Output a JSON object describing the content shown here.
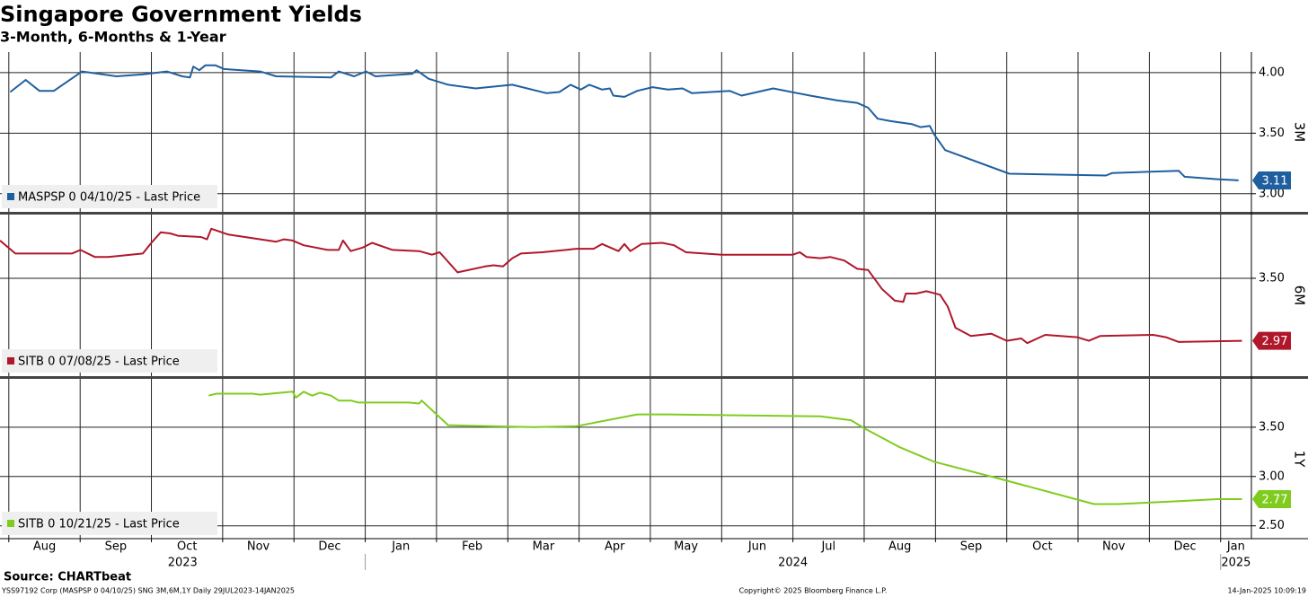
{
  "title": "Singapore Government Yields",
  "subtitle": "3-Month, 6-Months & 1-Year",
  "source": "Source: CHARTbeat",
  "footer": {
    "left": "YSS97192 Corp (MASPSP 0 04/10/25) SNG 3M,6M,1Y  Daily 29JUL2023-14JAN2025",
    "center": "Copyright© 2025 Bloomberg Finance L.P.",
    "right": "14-Jan-2025 10:09:19"
  },
  "chart_data": [
    {
      "type": "line",
      "axis_label": "3M",
      "ylim": [
        2.85,
        4.17
      ],
      "yticks": [
        {
          "value": 4,
          "label": "4.00"
        },
        {
          "value": 3.5,
          "label": "3.50"
        },
        {
          "value": 3,
          "label": "3.00"
        }
      ],
      "grid": true,
      "legend": "lower left",
      "series": [
        {
          "name": "MASPSP 0 04/10/25 - Last Price",
          "color": "#1f5f9f",
          "x": [
            2023.585,
            2023.603,
            2023.619,
            2023.636,
            2023.669,
            2023.709,
            2023.74,
            2023.768,
            2023.786,
            2023.795,
            2023.799,
            2023.806,
            2023.813,
            2023.825,
            2023.835,
            2023.877,
            2023.896,
            2023.96,
            2023.969,
            2023.987,
            2024.001,
            2024.012,
            2024.055,
            2024.06,
            2024.074,
            2024.097,
            2024.129,
            2024.172,
            2024.212,
            2024.227,
            2024.24,
            2024.252,
            2024.262,
            2024.277,
            2024.286,
            2024.29,
            2024.303,
            2024.318,
            2024.336,
            2024.354,
            2024.371,
            2024.382,
            2024.426,
            2024.44,
            2024.477,
            2024.52,
            2024.552,
            2024.575,
            2024.588,
            2024.599,
            2024.614,
            2024.639,
            2024.649,
            2024.66,
            2024.665,
            2024.678,
            2024.753,
            2024.866,
            2024.873,
            2024.951,
            2024.958,
            2024.996,
            2025.021
          ],
          "values": [
            3.84,
            3.94,
            3.85,
            3.85,
            4.01,
            3.97,
            3.985,
            4.01,
            3.97,
            3.96,
            4.05,
            4.02,
            4.06,
            4.06,
            4.03,
            4.01,
            3.97,
            3.96,
            4.01,
            3.97,
            4.01,
            3.97,
            3.99,
            4.02,
            3.95,
            3.9,
            3.87,
            3.9,
            3.83,
            3.84,
            3.9,
            3.86,
            3.9,
            3.86,
            3.87,
            3.81,
            3.8,
            3.85,
            3.88,
            3.86,
            3.87,
            3.83,
            3.85,
            3.81,
            3.87,
            3.81,
            3.77,
            3.75,
            3.71,
            3.62,
            3.6,
            3.575,
            3.55,
            3.56,
            3.49,
            3.36,
            3.165,
            3.15,
            3.17,
            3.19,
            3.14,
            3.12,
            3.11
          ]
        }
      ]
    },
    {
      "type": "line",
      "axis_label": "6M",
      "ylim": [
        2.67,
        4.04
      ],
      "yticks": [
        {
          "value": 3.5,
          "label": "3.50"
        }
      ],
      "grid": true,
      "legend": "lower left",
      "series": [
        {
          "name": "SITB 0 07/08/25 - Last Price",
          "color": "#b0172b",
          "x": [
            2023.573,
            2023.591,
            2023.621,
            2023.657,
            2023.667,
            2023.684,
            2023.699,
            2023.74,
            2023.75,
            2023.761,
            2023.772,
            2023.781,
            2023.808,
            2023.815,
            2023.82,
            2023.84,
            2023.896,
            2023.905,
            2023.915,
            2023.928,
            2023.956,
            2023.969,
            2023.974,
            2023.983,
            2023.997,
            2024.008,
            2024.032,
            2024.063,
            2024.078,
            2024.087,
            2024.108,
            2024.14,
            2024.15,
            2024.161,
            2024.172,
            2024.182,
            2024.207,
            2024.247,
            2024.267,
            2024.277,
            2024.296,
            2024.303,
            2024.31,
            2024.323,
            2024.347,
            2024.361,
            2024.375,
            2024.417,
            2024.5,
            2024.508,
            2024.516,
            2024.532,
            2024.544,
            2024.56,
            2024.575,
            2024.588,
            2024.604,
            2024.619,
            2024.629,
            2024.632,
            2024.644,
            2024.656,
            2024.672,
            2024.681,
            2024.69,
            2024.708,
            2024.732,
            2024.75,
            2024.767,
            2024.774,
            2024.795,
            2024.832,
            2024.846,
            2024.859,
            2024.921,
            2024.936,
            2024.951,
            2025.025
          ],
          "values": [
            3.82,
            3.71,
            3.71,
            3.71,
            3.74,
            3.68,
            3.68,
            3.71,
            3.8,
            3.89,
            3.88,
            3.86,
            3.85,
            3.83,
            3.92,
            3.87,
            3.81,
            3.83,
            3.82,
            3.78,
            3.74,
            3.74,
            3.82,
            3.73,
            3.76,
            3.8,
            3.74,
            3.73,
            3.7,
            3.72,
            3.55,
            3.6,
            3.61,
            3.6,
            3.67,
            3.71,
            3.72,
            3.75,
            3.75,
            3.79,
            3.73,
            3.79,
            3.73,
            3.79,
            3.8,
            3.78,
            3.72,
            3.7,
            3.7,
            3.72,
            3.68,
            3.67,
            3.68,
            3.65,
            3.58,
            3.57,
            3.41,
            3.31,
            3.3,
            3.37,
            3.37,
            3.39,
            3.36,
            3.26,
            3.08,
            3.01,
            3.03,
            2.97,
            2.99,
            2.95,
            3.02,
            3.0,
            2.97,
            3.01,
            3.02,
            3.0,
            2.96,
            2.97
          ]
        }
      ]
    },
    {
      "type": "line",
      "axis_label": "1Y",
      "ylim": [
        2.37,
        3.99
      ],
      "yticks": [
        {
          "value": 3.5,
          "label": "3.50"
        },
        {
          "value": 3,
          "label": "3.00"
        },
        {
          "value": 2.5,
          "label": "2.50"
        }
      ],
      "grid": true,
      "legend": "lower left",
      "xlim": [
        2023.573,
        2025.036
      ],
      "xticks": [
        {
          "value": 2023.5833,
          "label": "Aug"
        },
        {
          "value": 2023.6667,
          "label": "Sep"
        },
        {
          "value": 2023.75,
          "label": "Oct"
        },
        {
          "value": 2023.8333,
          "label": "Nov"
        },
        {
          "value": 2023.9167,
          "label": "Dec"
        },
        {
          "value": 2024,
          "label": "Jan"
        },
        {
          "value": 2024.0833,
          "label": "Feb"
        },
        {
          "value": 2024.1667,
          "label": "Mar"
        },
        {
          "value": 2024.25,
          "label": "Apr"
        },
        {
          "value": 2024.3333,
          "label": "May"
        },
        {
          "value": 2024.4167,
          "label": "Jun"
        },
        {
          "value": 2024.5,
          "label": "Jul"
        },
        {
          "value": 2024.5833,
          "label": "Aug"
        },
        {
          "value": 2024.6667,
          "label": "Sep"
        },
        {
          "value": 2024.75,
          "label": "Oct"
        },
        {
          "value": 2024.8333,
          "label": "Nov"
        },
        {
          "value": 2024.9167,
          "label": "Dec"
        },
        {
          "value": 2025,
          "label": "Jan"
        }
      ],
      "year_ticks": [
        2023,
        2024,
        2025
      ],
      "series": [
        {
          "name": "SITB 0 10/21/25 - Last Price",
          "color": "#7fcc1e",
          "x": [
            2023.817,
            2023.826,
            2023.868,
            2023.877,
            2023.915,
            2023.919,
            2023.928,
            2023.938,
            2023.947,
            2023.96,
            2023.969,
            2023.983,
            2023.992,
            2024.051,
            2024.063,
            2024.066,
            2024.097,
            2024.145,
            2024.197,
            2024.247,
            2024.318,
            2024.354,
            2024.532,
            2024.568,
            2024.583,
            2024.624,
            2024.665,
            2024.745,
            2024.852,
            2024.88,
            2024.951,
            2024.996,
            2025.025
          ],
          "values": [
            3.82,
            3.84,
            3.84,
            3.83,
            3.86,
            3.8,
            3.86,
            3.82,
            3.85,
            3.82,
            3.77,
            3.77,
            3.75,
            3.75,
            3.74,
            3.77,
            3.52,
            3.51,
            3.5,
            3.51,
            3.63,
            3.63,
            3.61,
            3.57,
            3.49,
            3.3,
            3.15,
            2.97,
            2.72,
            2.72,
            2.75,
            2.77,
            2.77
          ]
        }
      ]
    }
  ]
}
